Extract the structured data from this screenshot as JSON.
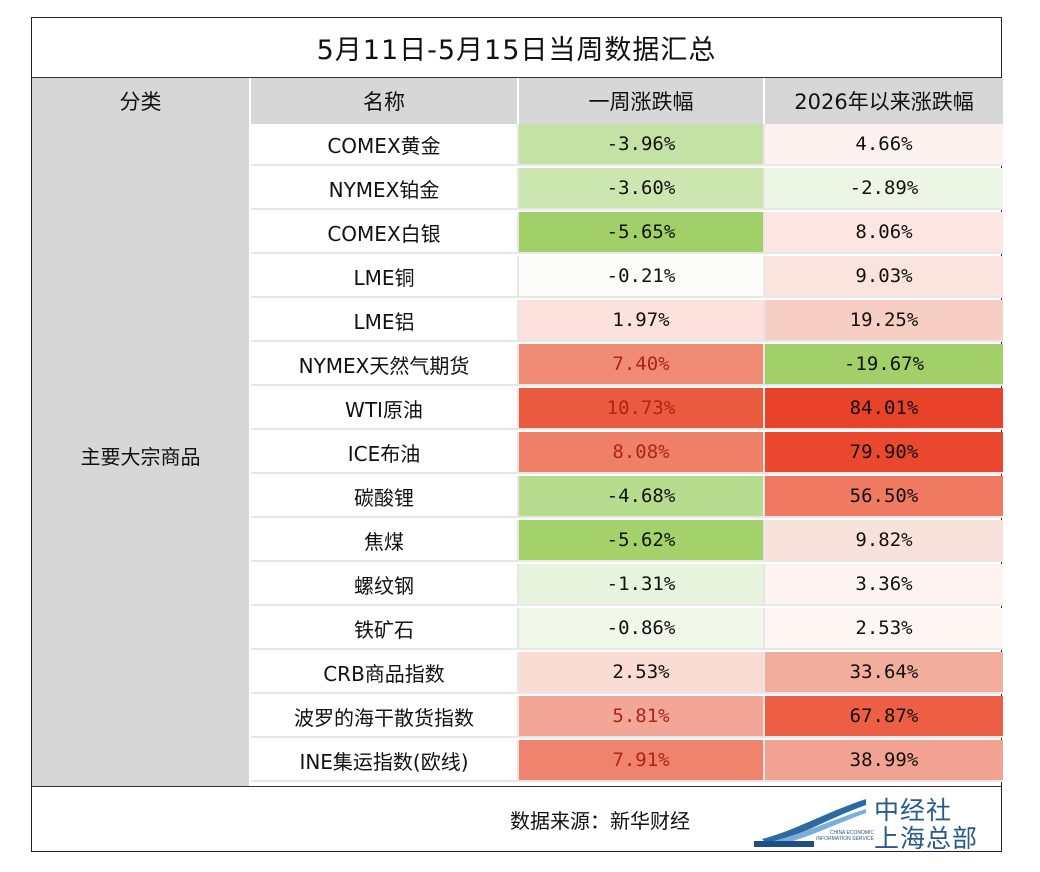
{
  "title": "5月11日-5月15日当周数据汇总",
  "headers": {
    "category": "分类",
    "name": "名称",
    "week": "一周涨跌幅",
    "ytd": "2026年以来涨跌幅"
  },
  "category": "主要大宗商品",
  "rows": [
    {
      "name": "COMEX黄金",
      "week": "-3.96%",
      "ytd": "4.66%",
      "week_bg": "#c4e2a4",
      "ytd_bg": "#fdf2ef",
      "week_fg": "#111111",
      "ytd_fg": "#111111"
    },
    {
      "name": "NYMEX铂金",
      "week": "-3.60%",
      "ytd": "-2.89%",
      "week_bg": "#cbe6ae",
      "ytd_bg": "#edf6e5",
      "week_fg": "#111111",
      "ytd_fg": "#111111"
    },
    {
      "name": "COMEX白银",
      "week": "-5.65%",
      "ytd": "8.06%",
      "week_bg": "#a2d068",
      "ytd_bg": "#fbe6e1",
      "week_fg": "#111111",
      "ytd_fg": "#111111"
    },
    {
      "name": "LME铜",
      "week": "-0.21%",
      "ytd": "9.03%",
      "week_bg": "#fbfcf9",
      "ytd_bg": "#fbe4de",
      "week_fg": "#111111",
      "ytd_fg": "#111111"
    },
    {
      "name": "LME铝",
      "week": "1.97%",
      "ytd": "19.25%",
      "week_bg": "#fbe2dc",
      "ytd_bg": "#f6cec4",
      "week_fg": "#111111",
      "ytd_fg": "#111111"
    },
    {
      "name": "NYMEX天然气期货",
      "week": "7.40%",
      "ytd": "-19.67%",
      "week_bg": "#f08c76",
      "ytd_bg": "#a2d068",
      "week_fg": "#b02318",
      "ytd_fg": "#111111"
    },
    {
      "name": "WTI原油",
      "week": "10.73%",
      "ytd": "84.01%",
      "week_bg": "#ea5a3e",
      "ytd_bg": "#e8432a",
      "week_fg": "#b02318",
      "ytd_fg": "#111111"
    },
    {
      "name": "ICE布油",
      "week": "8.08%",
      "ytd": "79.90%",
      "week_bg": "#ee8068",
      "ytd_bg": "#e9482f",
      "week_fg": "#b02318",
      "ytd_fg": "#111111"
    },
    {
      "name": "碳酸锂",
      "week": "-4.68%",
      "ytd": "56.50%",
      "week_bg": "#b7dc8e",
      "ytd_bg": "#ef7a61",
      "week_fg": "#111111",
      "ytd_fg": "#111111"
    },
    {
      "name": "焦煤",
      "week": "-5.62%",
      "ytd": "9.82%",
      "week_bg": "#a3d16a",
      "ytd_bg": "#fae2dc",
      "week_fg": "#111111",
      "ytd_fg": "#111111"
    },
    {
      "name": "螺纹钢",
      "week": "-1.31%",
      "ytd": "3.36%",
      "week_bg": "#e8f3dd",
      "ytd_bg": "#fdf4f1",
      "week_fg": "#111111",
      "ytd_fg": "#111111"
    },
    {
      "name": "铁矿石",
      "week": "-0.86%",
      "ytd": "2.53%",
      "week_bg": "#f1f8ea",
      "ytd_bg": "#fdf6f3",
      "week_fg": "#111111",
      "ytd_fg": "#111111"
    },
    {
      "name": "CRB商品指数",
      "week": "2.53%",
      "ytd": "33.64%",
      "week_bg": "#fadcd5",
      "ytd_bg": "#f3ad9d",
      "week_fg": "#111111",
      "ytd_fg": "#111111"
    },
    {
      "name": "波罗的海干散货指数",
      "week": "5.81%",
      "ytd": "67.87%",
      "week_bg": "#f3a695",
      "ytd_bg": "#ec5f44",
      "week_fg": "#b02318",
      "ytd_fg": "#111111"
    },
    {
      "name": "INE集运指数(欧线)",
      "week": "7.91%",
      "ytd": "38.99%",
      "week_bg": "#ef836b",
      "ytd_bg": "#f2a290",
      "week_fg": "#b02318",
      "ytd_fg": "#111111"
    }
  ],
  "footer": {
    "source": "数据来源：新华财经",
    "logo_cn_line1": "中经社",
    "logo_cn_line2": "上海总部",
    "logo_en": "CHINA ECONOMIC INFORMATION SERVICE",
    "logo_icon": "swoosh-logo-icon"
  }
}
